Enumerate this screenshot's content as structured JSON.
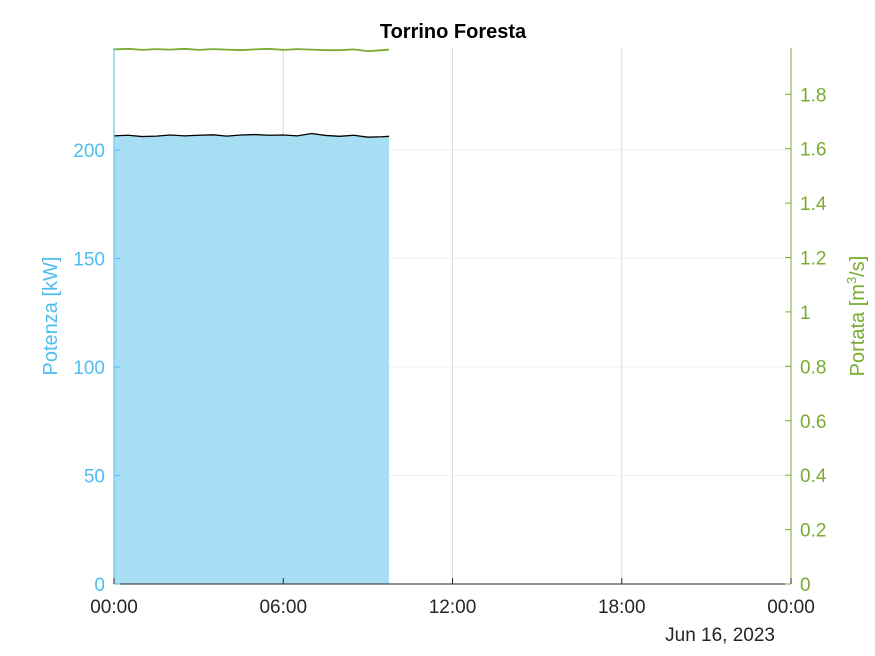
{
  "chart_data": {
    "type": "area",
    "title": "Torrino Foresta",
    "date_label": "Jun 16, 2023",
    "x_ticks": [
      "00:00",
      "06:00",
      "12:00",
      "18:00",
      "00:00"
    ],
    "x_tick_hours": [
      0,
      6,
      12,
      18,
      24
    ],
    "x_range_hours": [
      0,
      24
    ],
    "y_left": {
      "label": "Potenza [kW]",
      "range": [
        0,
        247
      ],
      "ticks": [
        0,
        50,
        100,
        150,
        200
      ],
      "color": "#4DBEEE"
    },
    "y_right": {
      "label_main": "Portata [m",
      "label_sup": "3",
      "label_end": "/s]",
      "range": [
        0,
        1.97
      ],
      "ticks": [
        "0",
        "0.2",
        "0.4",
        "0.6",
        "0.8",
        "1",
        "1.2",
        "1.4",
        "1.6",
        "1.8"
      ],
      "tick_values": [
        0,
        0.2,
        0.4,
        0.6,
        0.8,
        1.0,
        1.2,
        1.4,
        1.6,
        1.8
      ],
      "color": "#77AC30"
    },
    "grid": true,
    "series": [
      {
        "name": "Potenza",
        "axis": "left",
        "fill_color": "#A8DEF4",
        "line_color": "#000000",
        "x_hours": [
          0,
          0.5,
          1,
          1.5,
          2,
          2.5,
          3,
          3.5,
          4,
          4.5,
          5,
          5.5,
          6,
          6.5,
          7,
          7.5,
          8,
          8.5,
          9,
          9.5,
          9.75
        ],
        "values": [
          206.5,
          206.8,
          206.2,
          206.4,
          206.9,
          206.5,
          206.8,
          207.0,
          206.4,
          206.9,
          207.1,
          206.8,
          206.9,
          206.5,
          207.6,
          206.7,
          206.3,
          206.8,
          205.9,
          206.1,
          206.3
        ]
      },
      {
        "name": "Portata",
        "axis": "right",
        "line_color": "#77AC30",
        "x_hours": [
          0,
          0.5,
          1,
          1.5,
          2,
          2.5,
          3,
          3.5,
          4,
          4.5,
          5,
          5.5,
          6,
          6.5,
          7,
          7.5,
          8,
          8.5,
          9,
          9.5,
          9.75
        ],
        "values": [
          1.965,
          1.967,
          1.963,
          1.966,
          1.964,
          1.967,
          1.963,
          1.966,
          1.964,
          1.962,
          1.965,
          1.967,
          1.963,
          1.966,
          1.964,
          1.962,
          1.962,
          1.965,
          1.958,
          1.962,
          1.964
        ]
      }
    ]
  }
}
